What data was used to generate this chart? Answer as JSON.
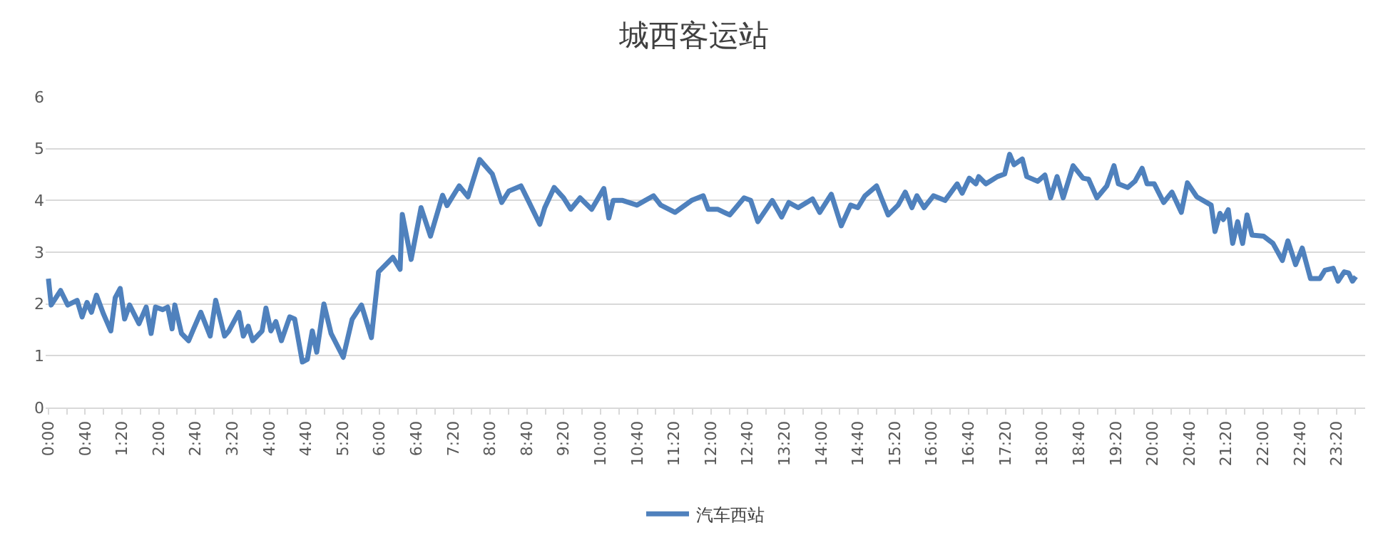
{
  "chart_data": {
    "type": "line",
    "title": "城西客运站",
    "x": [
      0.0,
      0.05,
      0.22,
      0.35,
      0.52,
      0.61,
      0.7,
      0.78,
      0.87,
      1.0,
      1.13,
      1.21,
      1.3,
      1.38,
      1.47,
      1.64,
      1.77,
      1.86,
      1.94,
      2.07,
      2.16,
      2.24,
      2.29,
      2.41,
      2.54,
      2.63,
      2.76,
      2.93,
      3.03,
      3.19,
      3.27,
      3.45,
      3.53,
      3.62,
      3.7,
      3.87,
      3.94,
      4.03,
      4.12,
      4.22,
      4.37,
      4.46,
      4.6,
      4.69,
      4.78,
      4.86,
      4.99,
      5.12,
      5.34,
      5.5,
      5.67,
      5.85,
      5.98,
      6.24,
      6.37,
      6.41,
      6.57,
      6.75,
      6.92,
      7.14,
      7.22,
      7.44,
      7.6,
      7.81,
      8.04,
      8.21,
      8.34,
      8.56,
      8.69,
      8.9,
      8.99,
      9.16,
      9.33,
      9.46,
      9.63,
      9.84,
      10.06,
      10.15,
      10.23,
      10.4,
      10.66,
      10.96,
      11.09,
      11.35,
      11.65,
      11.86,
      11.95,
      12.12,
      12.34,
      12.6,
      12.72,
      12.85,
      13.11,
      13.28,
      13.41,
      13.58,
      13.84,
      13.97,
      14.18,
      14.36,
      14.53,
      14.66,
      14.79,
      15.0,
      15.21,
      15.39,
      15.52,
      15.64,
      15.73,
      15.86,
      16.03,
      16.24,
      16.46,
      16.55,
      16.68,
      16.8,
      16.85,
      16.98,
      17.19,
      17.32,
      17.41,
      17.49,
      17.64,
      17.72,
      17.92,
      18.05,
      18.15,
      18.27,
      18.38,
      18.56,
      18.74,
      18.84,
      18.99,
      19.17,
      19.3,
      19.38,
      19.55,
      19.68,
      19.81,
      19.9,
      20.03,
      20.2,
      20.35,
      20.52,
      20.63,
      20.8,
      21.06,
      21.13,
      21.22,
      21.28,
      21.37,
      21.45,
      21.54,
      21.63,
      21.71,
      21.8,
      22.01,
      22.18,
      22.35,
      22.45,
      22.59,
      22.71,
      22.86,
      23.03,
      23.12,
      23.27,
      23.36,
      23.47,
      23.55,
      23.62,
      23.68
    ],
    "series": [
      {
        "name": "汽车西站",
        "color": "#4f81bd",
        "values": [
          2.49,
          1.98,
          2.26,
          1.98,
          2.07,
          1.75,
          2.03,
          1.84,
          2.17,
          1.8,
          1.48,
          2.12,
          2.3,
          1.71,
          1.98,
          1.62,
          1.94,
          1.43,
          1.94,
          1.89,
          1.94,
          1.52,
          1.98,
          1.43,
          1.29,
          1.52,
          1.84,
          1.38,
          2.07,
          1.38,
          1.48,
          1.84,
          1.38,
          1.57,
          1.29,
          1.48,
          1.92,
          1.48,
          1.66,
          1.29,
          1.75,
          1.71,
          0.88,
          0.93,
          1.48,
          1.07,
          2.0,
          1.43,
          0.97,
          1.7,
          1.98,
          1.35,
          2.62,
          2.9,
          2.67,
          3.73,
          2.86,
          3.86,
          3.31,
          4.1,
          3.9,
          4.28,
          4.07,
          4.79,
          4.51,
          3.96,
          4.18,
          4.28,
          4.0,
          3.54,
          3.86,
          4.25,
          4.05,
          3.83,
          4.05,
          3.83,
          4.23,
          3.66,
          4.0,
          4.0,
          3.91,
          4.09,
          3.91,
          3.77,
          4.0,
          4.09,
          3.83,
          3.83,
          3.72,
          4.05,
          4.0,
          3.59,
          4.0,
          3.68,
          3.96,
          3.86,
          4.03,
          3.77,
          4.12,
          3.51,
          3.91,
          3.86,
          4.09,
          4.28,
          3.72,
          3.91,
          4.16,
          3.86,
          4.09,
          3.86,
          4.09,
          4.0,
          4.32,
          4.14,
          4.43,
          4.32,
          4.46,
          4.32,
          4.46,
          4.51,
          4.89,
          4.69,
          4.8,
          4.46,
          4.37,
          4.49,
          4.05,
          4.46,
          4.05,
          4.67,
          4.43,
          4.41,
          4.05,
          4.28,
          4.67,
          4.32,
          4.25,
          4.37,
          4.62,
          4.32,
          4.32,
          3.96,
          4.16,
          3.77,
          4.34,
          4.07,
          3.91,
          3.4,
          3.75,
          3.63,
          3.82,
          3.17,
          3.59,
          3.17,
          3.72,
          3.33,
          3.31,
          3.17,
          2.84,
          3.22,
          2.76,
          3.08,
          2.49,
          2.49,
          2.65,
          2.69,
          2.44,
          2.62,
          2.6,
          2.44,
          2.53
        ]
      }
    ],
    "xlim": [
      -0.05,
      23.85
    ],
    "xticks": [
      {
        "value": 0,
        "label": "0:00"
      },
      {
        "value": 0.3333,
        "label": null
      },
      {
        "value": 0.6667,
        "label": "0:40"
      },
      {
        "value": 1,
        "label": null
      },
      {
        "value": 1.3333,
        "label": "1:20"
      },
      {
        "value": 1.6667,
        "label": null
      },
      {
        "value": 2,
        "label": "2:00"
      },
      {
        "value": 2.3333,
        "label": null
      },
      {
        "value": 2.6667,
        "label": "2:40"
      },
      {
        "value": 3,
        "label": null
      },
      {
        "value": 3.3333,
        "label": "3:20"
      },
      {
        "value": 3.6667,
        "label": null
      },
      {
        "value": 4,
        "label": "4:00"
      },
      {
        "value": 4.3333,
        "label": null
      },
      {
        "value": 4.6667,
        "label": "4:40"
      },
      {
        "value": 5,
        "label": null
      },
      {
        "value": 5.3333,
        "label": "5:20"
      },
      {
        "value": 5.6667,
        "label": null
      },
      {
        "value": 6,
        "label": "6:00"
      },
      {
        "value": 6.3333,
        "label": null
      },
      {
        "value": 6.6667,
        "label": "6:40"
      },
      {
        "value": 7,
        "label": null
      },
      {
        "value": 7.3333,
        "label": "7:20"
      },
      {
        "value": 7.6667,
        "label": null
      },
      {
        "value": 8,
        "label": "8:00"
      },
      {
        "value": 8.3333,
        "label": null
      },
      {
        "value": 8.6667,
        "label": "8:40"
      },
      {
        "value": 9,
        "label": null
      },
      {
        "value": 9.3333,
        "label": "9:20"
      },
      {
        "value": 9.6667,
        "label": null
      },
      {
        "value": 10,
        "label": "10:00"
      },
      {
        "value": 10.3333,
        "label": null
      },
      {
        "value": 10.6667,
        "label": "10:40"
      },
      {
        "value": 11,
        "label": null
      },
      {
        "value": 11.3333,
        "label": "11:20"
      },
      {
        "value": 11.6667,
        "label": null
      },
      {
        "value": 12,
        "label": "12:00"
      },
      {
        "value": 12.3333,
        "label": null
      },
      {
        "value": 12.6667,
        "label": "12:40"
      },
      {
        "value": 13,
        "label": null
      },
      {
        "value": 13.3333,
        "label": "13:20"
      },
      {
        "value": 13.6667,
        "label": null
      },
      {
        "value": 14,
        "label": "14:00"
      },
      {
        "value": 14.3333,
        "label": null
      },
      {
        "value": 14.6667,
        "label": "14:40"
      },
      {
        "value": 15,
        "label": null
      },
      {
        "value": 15.3333,
        "label": "15:20"
      },
      {
        "value": 15.6667,
        "label": null
      },
      {
        "value": 16,
        "label": "16:00"
      },
      {
        "value": 16.3333,
        "label": null
      },
      {
        "value": 16.6667,
        "label": "16:40"
      },
      {
        "value": 17,
        "label": null
      },
      {
        "value": 17.3333,
        "label": "17:20"
      },
      {
        "value": 17.6667,
        "label": null
      },
      {
        "value": 18,
        "label": "18:00"
      },
      {
        "value": 18.3333,
        "label": null
      },
      {
        "value": 18.6667,
        "label": "18:40"
      },
      {
        "value": 19,
        "label": null
      },
      {
        "value": 19.3333,
        "label": "19:20"
      },
      {
        "value": 19.6667,
        "label": null
      },
      {
        "value": 20,
        "label": "20:00"
      },
      {
        "value": 20.3333,
        "label": null
      },
      {
        "value": 20.6667,
        "label": "20:40"
      },
      {
        "value": 21,
        "label": null
      },
      {
        "value": 21.3333,
        "label": "21:20"
      },
      {
        "value": 21.6667,
        "label": null
      },
      {
        "value": 22,
        "label": "22:00"
      },
      {
        "value": 22.3333,
        "label": null
      },
      {
        "value": 22.6667,
        "label": "22:40"
      },
      {
        "value": 23,
        "label": null
      },
      {
        "value": 23.3333,
        "label": "23:20"
      },
      {
        "value": 23.6667,
        "label": null
      }
    ],
    "ylim": [
      0,
      6
    ],
    "yticks": [
      0,
      1,
      2,
      3,
      4,
      5,
      6
    ],
    "grid": "y",
    "legend": "bottom",
    "marker": "none",
    "line_style": "solid"
  }
}
